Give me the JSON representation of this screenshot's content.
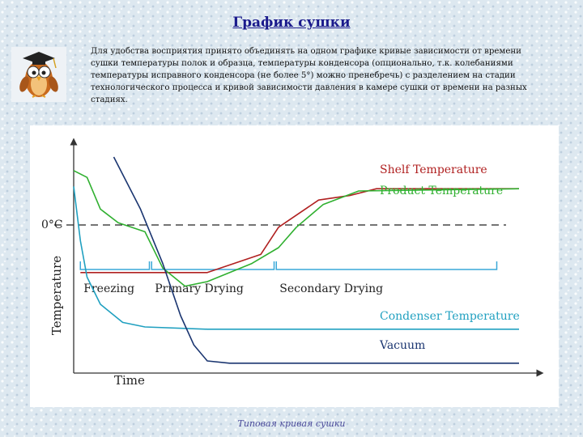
{
  "slide": {
    "title": "График сушки",
    "description": "Для удобства восприятия принято объединять на одном графике кривые зависимости от времени сушки температуры полок и образца, температуры конденсора (опционально, т.к. колебаниями температуры исправного конденсора (не более 5°) можно пренебречь) с разделением на стадии технологического процесса и кривой зависимости давления в камере сушки от времени на разных стадиях.",
    "caption": "Типовая кривая сушки",
    "mascot_icon": "owl-professor-icon"
  },
  "chart_data": {
    "type": "line",
    "xlabel": "Time",
    "ylabel": "Temperature",
    "reference_line_label": "0°C",
    "x_range": [
      0,
      100
    ],
    "y_range": [
      0,
      100
    ],
    "stages": [
      {
        "label": "Freezing",
        "start": 1.5,
        "end": 17
      },
      {
        "label": "Primary Drying",
        "start": 17.5,
        "end": 45
      },
      {
        "label": "Secondary Drying",
        "start": 45.5,
        "end": 95
      }
    ],
    "series": [
      {
        "name": "Shelf Temperature",
        "color": "#b02020",
        "points": [
          [
            1.5,
            44
          ],
          [
            17,
            44
          ],
          [
            30,
            44
          ],
          [
            42,
            52
          ],
          [
            46,
            64
          ],
          [
            55,
            76
          ],
          [
            62,
            78
          ],
          [
            68,
            81
          ],
          [
            100,
            81
          ]
        ]
      },
      {
        "name": "Product Temperature",
        "color": "#30b030",
        "points": [
          [
            0,
            89
          ],
          [
            3,
            86
          ],
          [
            6,
            72
          ],
          [
            10,
            66
          ],
          [
            16,
            62
          ],
          [
            20,
            46
          ],
          [
            25,
            38
          ],
          [
            30,
            40
          ],
          [
            40,
            48
          ],
          [
            46,
            55
          ],
          [
            50,
            64
          ],
          [
            56,
            74
          ],
          [
            64,
            80
          ],
          [
            100,
            81
          ]
        ]
      },
      {
        "name": "Condenser Temperature",
        "color": "#20a0c0",
        "points": [
          [
            0,
            82
          ],
          [
            1.5,
            58
          ],
          [
            3,
            42
          ],
          [
            6,
            30
          ],
          [
            11,
            22
          ],
          [
            16,
            20
          ],
          [
            30,
            19
          ],
          [
            100,
            19
          ]
        ]
      },
      {
        "name": "Vacuum",
        "color": "#1a3570",
        "points": [
          [
            9,
            95
          ],
          [
            15,
            72
          ],
          [
            20,
            48
          ],
          [
            24,
            25
          ],
          [
            27,
            12
          ],
          [
            30,
            5
          ],
          [
            35,
            4
          ],
          [
            100,
            4
          ]
        ]
      }
    ],
    "reference_line_value": 65,
    "legend_placement": "right, next to each curve",
    "grid": false
  }
}
